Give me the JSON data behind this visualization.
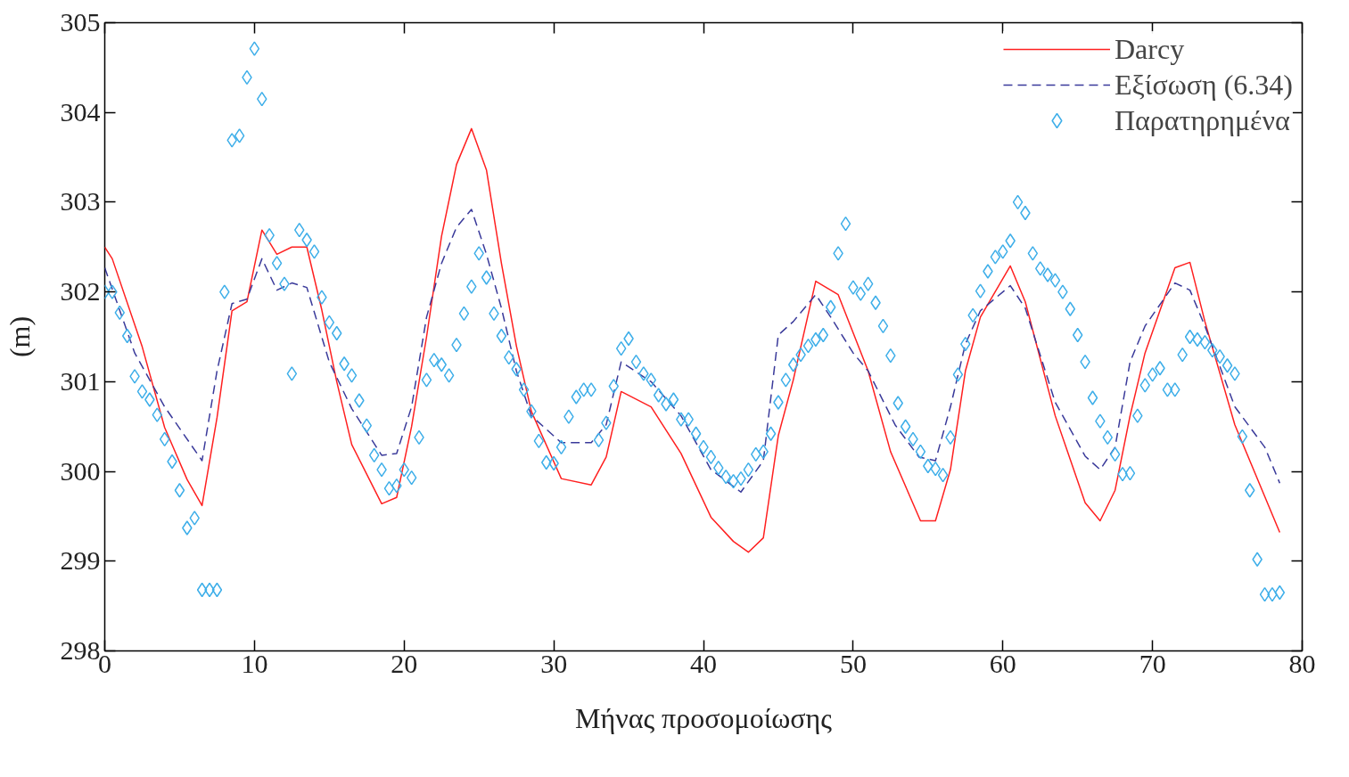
{
  "chart_data": {
    "type": "line",
    "xlabel": "Μήνας προσομοίωσης",
    "ylabel": "(m)",
    "xlim": [
      0,
      80
    ],
    "xticks": [
      0,
      10,
      20,
      30,
      40,
      50,
      60,
      70,
      80
    ],
    "ylim": [
      298,
      305
    ],
    "yticks": [
      298,
      299,
      300,
      301,
      302,
      303,
      304,
      305
    ],
    "grid": false,
    "legend": "top right",
    "series": [
      {
        "name": "Darcy",
        "color": "#ff2020",
        "line_style": "solid",
        "marker": "none",
        "x": [
          0,
          0.5,
          2.5,
          4,
          5.5,
          6.5,
          7.5,
          8.5,
          9.5,
          10.5,
          11.5,
          12.5,
          13.5,
          14.5,
          15.5,
          16.5,
          18.5,
          19.5,
          20.5,
          21.5,
          22.5,
          23.5,
          24.5,
          25.5,
          26.5,
          27.5,
          28.5,
          30.5,
          32.5,
          33.5,
          34.5,
          36.5,
          38.5,
          40.5,
          42,
          43,
          44,
          45,
          46,
          47.5,
          49,
          51,
          52.5,
          54.5,
          55.5,
          56.5,
          57.5,
          58.5,
          60.5,
          61.5,
          63.5,
          65.5,
          66.5,
          67.5,
          68.5,
          69.5,
          71.5,
          72.5,
          73.5,
          75.5,
          77.5,
          78.5
        ],
        "values": [
          302.5,
          302.37,
          301.39,
          300.49,
          299.91,
          299.62,
          300.6,
          301.79,
          301.89,
          302.69,
          302.42,
          302.5,
          302.5,
          301.8,
          301.0,
          300.3,
          299.64,
          299.71,
          300.5,
          301.5,
          302.62,
          303.42,
          303.82,
          303.36,
          302.32,
          301.4,
          300.67,
          299.92,
          299.85,
          300.16,
          300.89,
          300.72,
          300.2,
          299.49,
          299.22,
          299.1,
          299.26,
          300.4,
          301.02,
          302.12,
          301.97,
          301.12,
          300.22,
          299.45,
          299.45,
          300.02,
          301.12,
          301.72,
          302.29,
          301.89,
          300.62,
          299.65,
          299.45,
          299.79,
          300.62,
          301.32,
          302.27,
          302.33,
          301.67,
          300.52,
          299.72,
          299.32
        ]
      },
      {
        "name": "Εξίσωση (6.34)",
        "color": "#3a3a9a",
        "line_style": "dashed",
        "marker": "none",
        "x": [
          0,
          2,
          4,
          6.5,
          7.5,
          8.5,
          9.5,
          10.5,
          11.5,
          12.5,
          13.5,
          15,
          16.5,
          18.5,
          19.5,
          20.5,
          21.5,
          22.5,
          23.5,
          24.5,
          25.5,
          26.5,
          27.5,
          28.5,
          30.5,
          32.5,
          33.5,
          34.5,
          36.5,
          38.5,
          40.5,
          42.5,
          44,
          45,
          46,
          47.5,
          48.5,
          50,
          51,
          52.8,
          54.4,
          55.5,
          56.5,
          57.5,
          58.5,
          60.5,
          61.5,
          63.5,
          65.5,
          66.5,
          67.5,
          68.5,
          69.5,
          71.5,
          72.5,
          73.5,
          75.5,
          77.5,
          78.5
        ],
        "values": [
          302.27,
          301.32,
          300.72,
          300.12,
          301.12,
          301.87,
          301.92,
          302.37,
          302.02,
          302.1,
          302.05,
          301.22,
          300.7,
          300.18,
          300.2,
          300.72,
          301.72,
          302.32,
          302.72,
          302.92,
          302.42,
          301.82,
          301.12,
          300.62,
          300.32,
          300.32,
          300.52,
          301.22,
          301.0,
          300.62,
          300.02,
          299.77,
          300.12,
          301.52,
          301.67,
          301.97,
          301.72,
          301.32,
          301.12,
          300.52,
          300.16,
          300.12,
          300.72,
          301.42,
          301.79,
          302.07,
          301.82,
          300.77,
          300.17,
          300.02,
          300.27,
          301.22,
          301.62,
          302.1,
          302.02,
          301.62,
          300.72,
          300.27,
          299.87
        ]
      },
      {
        "name": "Παρατηρημένα",
        "type": "scatter",
        "color": "#3daee9",
        "marker": "diamond",
        "x": [
          0,
          0.5,
          1,
          1.5,
          2,
          2.5,
          3,
          3.5,
          4,
          4.5,
          5,
          5.5,
          6,
          6.5,
          7,
          7.5,
          8,
          8.5,
          9,
          9.5,
          10,
          10.5,
          11,
          11.5,
          12,
          12.5,
          13,
          13.5,
          14,
          14.5,
          15,
          15.5,
          16,
          16.5,
          17,
          17.5,
          18,
          18.5,
          19,
          19.5,
          20,
          20.5,
          21,
          21.5,
          22,
          22.5,
          23,
          23.5,
          24,
          24.5,
          25,
          25.5,
          26,
          26.5,
          27,
          27.5,
          28,
          28.5,
          29,
          29.5,
          30,
          30.5,
          31,
          31.5,
          32,
          32.5,
          33,
          33.5,
          34,
          34.5,
          35,
          35.5,
          36,
          36.5,
          37,
          37.5,
          38,
          38.5,
          39,
          39.5,
          40,
          40.5,
          41,
          41.5,
          42,
          42.5,
          43,
          43.5,
          44,
          44.5,
          45,
          45.5,
          46,
          46.5,
          47,
          47.5,
          48,
          48.5,
          49,
          49.5,
          50,
          50.5,
          51,
          51.5,
          52,
          52.5,
          53,
          53.5,
          54,
          54.5,
          55,
          55.5,
          56,
          56.5,
          57,
          57.5,
          58,
          58.5,
          59,
          59.5,
          60,
          60.5,
          61,
          61.5,
          62,
          62.5,
          63,
          63.5,
          64,
          64.5,
          65,
          65.5,
          66,
          66.5,
          67,
          67.5,
          68,
          68.5,
          69,
          69.5,
          70,
          70.5,
          71,
          71.5,
          72,
          72.5,
          73,
          73.5,
          74,
          74.5,
          75,
          75.5,
          76,
          76.5,
          77,
          77.5,
          78,
          78.5
        ],
        "values": [
          302.0,
          302.0,
          301.77,
          301.51,
          301.06,
          300.89,
          300.8,
          300.63,
          300.36,
          300.11,
          299.79,
          299.37,
          299.48,
          298.68,
          298.68,
          298.68,
          302.0,
          303.69,
          303.74,
          304.39,
          304.71,
          304.15,
          302.63,
          302.32,
          302.09,
          301.09,
          302.69,
          302.58,
          302.45,
          301.94,
          301.66,
          301.54,
          301.2,
          301.07,
          300.79,
          300.51,
          300.18,
          300.02,
          299.81,
          299.84,
          300.02,
          299.93,
          300.38,
          301.02,
          301.24,
          301.19,
          301.07,
          301.41,
          301.76,
          302.06,
          302.43,
          302.16,
          301.76,
          301.51,
          301.27,
          301.14,
          300.91,
          300.67,
          300.34,
          300.1,
          300.09,
          300.27,
          300.61,
          300.83,
          300.91,
          300.91,
          300.35,
          300.54,
          300.95,
          301.37,
          301.48,
          301.22,
          301.09,
          301.02,
          300.85,
          300.75,
          300.8,
          300.58,
          300.58,
          300.42,
          300.27,
          300.16,
          300.04,
          299.94,
          299.89,
          299.92,
          300.02,
          300.19,
          300.22,
          300.42,
          300.77,
          301.02,
          301.19,
          301.3,
          301.4,
          301.47,
          301.52,
          301.83,
          302.43,
          302.76,
          302.05,
          301.98,
          302.09,
          301.88,
          301.62,
          301.29,
          300.76,
          300.5,
          300.36,
          300.22,
          300.06,
          300.03,
          299.96,
          300.38,
          301.08,
          301.42,
          301.74,
          302.01,
          302.23,
          302.39,
          302.45,
          302.57,
          303.0,
          302.88,
          302.43,
          302.26,
          302.19,
          302.13,
          302.0,
          301.81,
          301.52,
          301.22,
          300.82,
          300.56,
          300.38,
          300.19,
          299.97,
          299.98,
          300.62,
          300.96,
          301.08,
          301.15,
          300.91,
          300.91,
          301.3,
          301.5,
          301.47,
          301.44,
          301.35,
          301.28,
          301.18,
          301.09,
          300.39,
          299.79,
          299.02,
          298.63,
          298.63,
          298.65
        ]
      }
    ]
  }
}
